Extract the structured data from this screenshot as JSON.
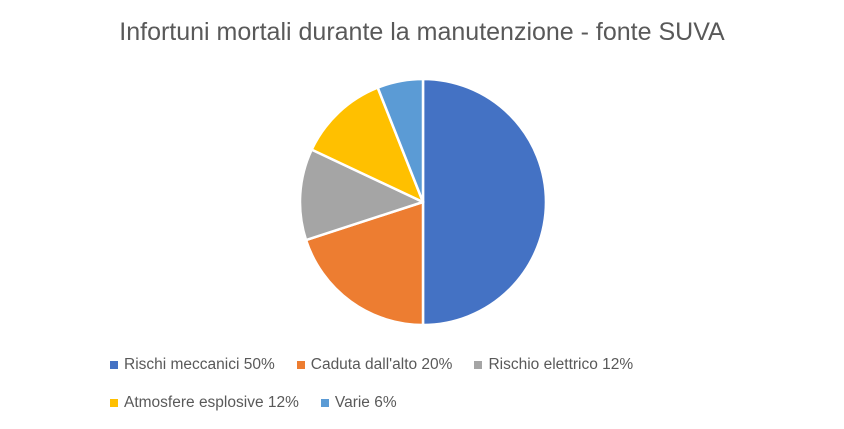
{
  "chart_data": {
    "type": "pie",
    "title": "Infortuni mortali durante la manutenzione - fonte SUVA",
    "slices": [
      {
        "label": "Rischi meccanici 50%",
        "value": 50,
        "color": "#4472C4"
      },
      {
        "label": "Caduta dall'alto 20%",
        "value": 20,
        "color": "#ED7D31"
      },
      {
        "label": "Rischio elettrico 12%",
        "value": 12,
        "color": "#A5A5A5"
      },
      {
        "label": "Atmosfere esplosive 12%",
        "value": 12,
        "color": "#FFC000"
      },
      {
        "label": "Varie 6%",
        "value": 6,
        "color": "#5B9BD5"
      }
    ],
    "legend_position": "bottom"
  }
}
